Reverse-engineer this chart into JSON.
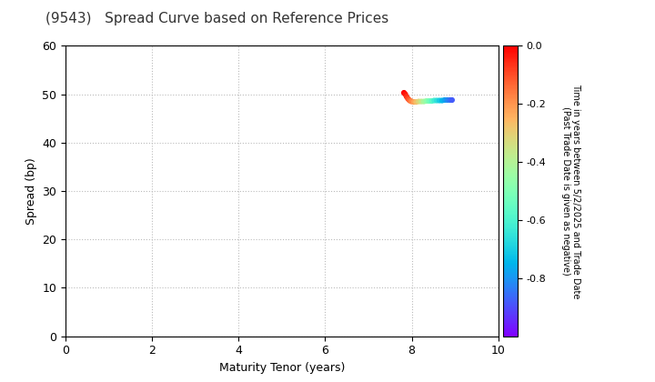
{
  "title": "(9543)   Spread Curve based on Reference Prices",
  "xlabel": "Maturity Tenor (years)",
  "ylabel": "Spread (bp)",
  "colorbar_label": "Time in years between 5/2/2025 and Trade Date\n(Past Trade Date is given as negative)",
  "xlim": [
    0,
    10
  ],
  "ylim": [
    0,
    60
  ],
  "xticks": [
    0,
    2,
    4,
    6,
    8,
    10
  ],
  "yticks": [
    0,
    10,
    20,
    30,
    40,
    50,
    60
  ],
  "colorbar_ticks": [
    0.0,
    -0.2,
    -0.4,
    -0.6,
    -0.8
  ],
  "colorbar_vmin": -1.0,
  "colorbar_vmax": 0.0,
  "scatter_x": [
    7.82,
    7.85,
    7.88,
    7.91,
    7.94,
    7.97,
    8.0,
    8.05,
    8.1,
    8.16,
    8.22,
    8.28,
    8.34,
    8.4,
    8.46,
    8.52,
    8.58,
    8.64,
    8.7,
    8.76,
    8.82,
    8.88,
    8.93
  ],
  "scatter_y": [
    50.3,
    50.0,
    49.5,
    49.1,
    48.8,
    48.6,
    48.5,
    48.4,
    48.4,
    48.5,
    48.5,
    48.5,
    48.6,
    48.6,
    48.6,
    48.7,
    48.7,
    48.7,
    48.7,
    48.8,
    48.8,
    48.8,
    48.8
  ],
  "scatter_c": [
    0.0,
    -0.03,
    -0.06,
    -0.09,
    -0.12,
    -0.15,
    -0.18,
    -0.22,
    -0.27,
    -0.32,
    -0.37,
    -0.42,
    -0.47,
    -0.52,
    -0.57,
    -0.62,
    -0.66,
    -0.7,
    -0.74,
    -0.78,
    -0.82,
    -0.85,
    -0.88
  ],
  "scatter_size": 12,
  "background_color": "#ffffff",
  "grid_color": "#bbbbbb",
  "title_fontsize": 11,
  "axis_fontsize": 9
}
